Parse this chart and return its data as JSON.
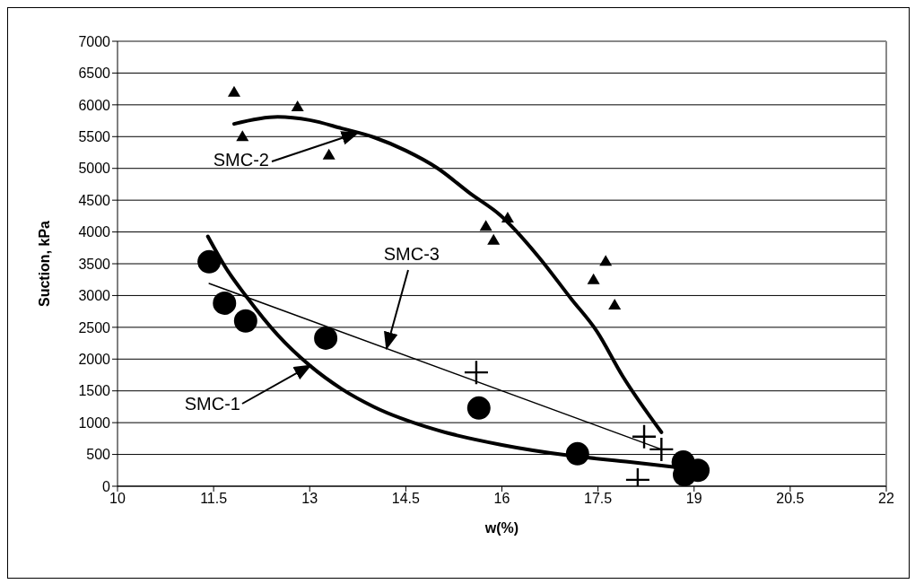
{
  "chart_data": {
    "type": "scatter",
    "xlabel": "w(%)",
    "ylabel": "Suction, kPa",
    "xlim": [
      10,
      22
    ],
    "xticks": [
      10,
      11.5,
      13,
      14.5,
      16,
      17.5,
      19,
      20.5,
      22
    ],
    "ylim": [
      0,
      7000
    ],
    "yticks": [
      0,
      500,
      1000,
      1500,
      2000,
      2500,
      3000,
      3500,
      4000,
      4500,
      5000,
      5500,
      6000,
      6500,
      7000
    ],
    "grid": "y",
    "series": [
      {
        "marker": "triangle",
        "color": "#000000",
        "x": [
          11.82,
          11.95,
          12.81,
          13.3,
          15.75,
          15.87,
          16.09,
          17.43,
          17.62,
          17.76
        ],
        "values": [
          6200,
          5500,
          5970,
          5210,
          4090,
          3870,
          4220,
          3250,
          3540,
          2850
        ]
      },
      {
        "marker": "circle",
        "color": "#000000",
        "x": [
          11.43,
          11.67,
          12.0,
          13.25,
          15.64,
          17.18,
          18.83,
          18.85,
          19.06
        ],
        "values": [
          3530,
          2880,
          2600,
          2330,
          1230,
          510,
          380,
          180,
          250
        ]
      },
      {
        "marker": "cross",
        "color": "#000000",
        "x": [
          15.6,
          18.22,
          18.49,
          18.12
        ],
        "values": [
          1790,
          780,
          580,
          100
        ]
      },
      {
        "type": "line",
        "color": "#000000",
        "x": [
          11.82,
          12.5,
          13.0,
          13.5,
          14.0,
          14.5,
          15.0,
          15.5,
          15.98,
          16.58,
          17.08,
          17.48,
          17.88,
          18.49
        ],
        "values": [
          5700,
          5810,
          5760,
          5630,
          5490,
          5280,
          5000,
          4610,
          4260,
          3600,
          2950,
          2440,
          1740,
          850
        ]
      },
      {
        "type": "line",
        "color": "#000000",
        "x": [
          11.41,
          11.7,
          12.0,
          12.5,
          13.0,
          13.5,
          14.0,
          15.0,
          16.0,
          17.0,
          18.0,
          18.8
        ],
        "values": [
          3930,
          3420,
          3000,
          2380,
          1900,
          1530,
          1250,
          880,
          650,
          490,
          380,
          290
        ]
      },
      {
        "type": "line",
        "color": "#000000",
        "x": [
          11.43,
          18.49
        ],
        "values": [
          3190,
          580
        ]
      }
    ],
    "annotations": [
      {
        "text": "SMC-2",
        "x": 13.75,
        "y": 5560
      },
      {
        "text": "SMC-3",
        "x": 14.2,
        "y": 2170
      },
      {
        "text": "SMC-1",
        "x": 13.01,
        "y": 1900
      }
    ]
  }
}
